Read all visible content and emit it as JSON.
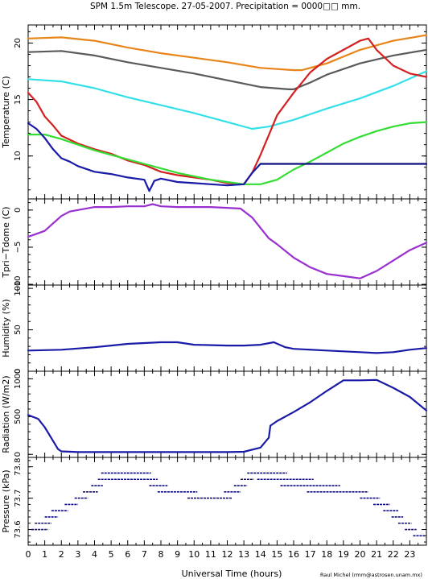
{
  "header": {
    "title": "SPM 1.5m Telescope. 27-05-2007. Precipitation = 0000□□ mm.",
    "credit": "Raul Michel (rmm@astrosen.unam.mx)"
  },
  "colors": {
    "axes": "#000000",
    "orange": "#e8851a",
    "gray": "#5a5a5a",
    "cyan": "#33e0e8",
    "red": "#d42020",
    "green": "#33dd33",
    "blue": "#1a1aa8",
    "navy": "#0d0d80",
    "purple": "#9a2fd0"
  },
  "chart_data": [
    {
      "type": "line",
      "ylabel": "Temperature (C)",
      "ylim": [
        6.2,
        21.6
      ],
      "yticks": [
        10,
        15,
        20
      ],
      "xlim": [
        0,
        24
      ],
      "series": [
        {
          "color": "orange",
          "points": [
            [
              0,
              20.4
            ],
            [
              2,
              20.5
            ],
            [
              4,
              20.2
            ],
            [
              6,
              19.6
            ],
            [
              8,
              19.1
            ],
            [
              10,
              18.7
            ],
            [
              12,
              18.3
            ],
            [
              14,
              17.8
            ],
            [
              16,
              17.6
            ],
            [
              16.5,
              17.6
            ],
            [
              18,
              18.2
            ],
            [
              20,
              19.4
            ],
            [
              22,
              20.2
            ],
            [
              24,
              20.7
            ]
          ]
        },
        {
          "color": "gray",
          "points": [
            [
              0,
              19.2
            ],
            [
              2,
              19.3
            ],
            [
              4,
              18.9
            ],
            [
              6,
              18.3
            ],
            [
              8,
              17.8
            ],
            [
              10,
              17.3
            ],
            [
              12,
              16.7
            ],
            [
              14,
              16.1
            ],
            [
              15.7,
              15.9
            ],
            [
              16,
              15.9
            ],
            [
              17,
              16.5
            ],
            [
              18,
              17.2
            ],
            [
              20,
              18.2
            ],
            [
              22,
              18.9
            ],
            [
              24,
              19.4
            ]
          ]
        },
        {
          "color": "cyan",
          "points": [
            [
              0,
              16.8
            ],
            [
              2,
              16.6
            ],
            [
              4,
              16.0
            ],
            [
              6,
              15.2
            ],
            [
              8,
              14.5
            ],
            [
              10,
              13.8
            ],
            [
              12,
              13.0
            ],
            [
              13.5,
              12.4
            ],
            [
              14.5,
              12.6
            ],
            [
              16,
              13.2
            ],
            [
              18,
              14.2
            ],
            [
              20,
              15.1
            ],
            [
              22,
              16.2
            ],
            [
              24,
              17.5
            ]
          ]
        },
        {
          "color": "red",
          "points": [
            [
              0,
              15.6
            ],
            [
              0.5,
              14.8
            ],
            [
              1,
              13.5
            ],
            [
              1.5,
              12.7
            ],
            [
              2,
              11.8
            ],
            [
              3,
              11.1
            ],
            [
              4,
              10.6
            ],
            [
              5,
              10.2
            ],
            [
              6,
              9.6
            ],
            [
              7,
              9.2
            ],
            [
              8,
              8.6
            ],
            [
              9,
              8.3
            ],
            [
              10,
              8.1
            ],
            [
              11,
              7.9
            ],
            [
              12,
              7.6
            ],
            [
              13,
              7.5
            ],
            [
              13.5,
              8.5
            ],
            [
              14,
              10.1
            ],
            [
              15,
              13.6
            ],
            [
              16,
              15.6
            ],
            [
              17,
              17.4
            ],
            [
              18,
              18.6
            ],
            [
              19,
              19.4
            ],
            [
              20,
              20.2
            ],
            [
              20.5,
              20.4
            ],
            [
              21,
              19.4
            ],
            [
              22,
              18.0
            ],
            [
              23,
              17.3
            ],
            [
              24,
              17.0
            ]
          ]
        },
        {
          "color": "green",
          "points": [
            [
              0,
              11.9
            ],
            [
              1,
              11.9
            ],
            [
              2,
              11.5
            ],
            [
              3,
              11.0
            ],
            [
              4,
              10.5
            ],
            [
              5,
              10.1
            ],
            [
              6,
              9.7
            ],
            [
              7,
              9.3
            ],
            [
              8,
              8.9
            ],
            [
              9,
              8.5
            ],
            [
              10,
              8.2
            ],
            [
              11,
              7.9
            ],
            [
              12,
              7.7
            ],
            [
              13,
              7.5
            ],
            [
              14,
              7.5
            ],
            [
              15,
              7.9
            ],
            [
              16,
              8.8
            ],
            [
              17,
              9.5
            ],
            [
              18,
              10.3
            ],
            [
              19,
              11.1
            ],
            [
              20,
              11.7
            ],
            [
              21,
              12.2
            ],
            [
              22,
              12.6
            ],
            [
              23,
              12.9
            ],
            [
              24,
              13.0
            ]
          ]
        },
        {
          "color": "blue",
          "points": [
            [
              0,
              12.9
            ],
            [
              0.5,
              12.4
            ],
            [
              1,
              11.6
            ],
            [
              1.5,
              10.6
            ],
            [
              2,
              9.8
            ],
            [
              2.5,
              9.5
            ],
            [
              3,
              9.1
            ],
            [
              4,
              8.6
            ],
            [
              5,
              8.4
            ],
            [
              6,
              8.1
            ],
            [
              7,
              7.9
            ],
            [
              7.3,
              6.9
            ],
            [
              7.6,
              7.8
            ],
            [
              8,
              8.0
            ],
            [
              9,
              7.7
            ],
            [
              10,
              7.6
            ],
            [
              11,
              7.5
            ],
            [
              12,
              7.4
            ],
            [
              13,
              7.5
            ],
            [
              13.5,
              8.5
            ],
            [
              14,
              9.3
            ]
          ]
        },
        {
          "color": "navy",
          "points": [
            [
              14,
              9.3
            ],
            [
              24,
              9.3
            ]
          ]
        }
      ]
    },
    {
      "type": "line",
      "ylabel": "Tpri−Tdome (C)",
      "ylim": [
        -10.1,
        1.5
      ],
      "yticks": [
        0,
        -5,
        -10
      ],
      "xlim": [
        0,
        24
      ],
      "series": [
        {
          "color": "purple",
          "points": [
            [
              0,
              -3.6
            ],
            [
              0.5,
              -3.2
            ],
            [
              1,
              -2.8
            ],
            [
              1.5,
              -1.8
            ],
            [
              2,
              -0.8
            ],
            [
              2.5,
              -0.2
            ],
            [
              3,
              0.0
            ],
            [
              4,
              0.4
            ],
            [
              5,
              0.4
            ],
            [
              6,
              0.5
            ],
            [
              7,
              0.5
            ],
            [
              7.5,
              0.8
            ],
            [
              8,
              0.5
            ],
            [
              9,
              0.4
            ],
            [
              10,
              0.4
            ],
            [
              11,
              0.4
            ],
            [
              12,
              0.3
            ],
            [
              12.8,
              0.2
            ],
            [
              13.5,
              -1.0
            ],
            [
              14.5,
              -3.8
            ],
            [
              15,
              -4.6
            ],
            [
              16,
              -6.4
            ],
            [
              17,
              -7.7
            ],
            [
              18,
              -8.6
            ],
            [
              19,
              -8.9
            ],
            [
              20,
              -9.2
            ],
            [
              21,
              -8.2
            ],
            [
              22,
              -6.8
            ],
            [
              23,
              -5.4
            ],
            [
              24,
              -4.4
            ]
          ]
        }
      ]
    },
    {
      "type": "line",
      "ylabel": "Humidity (%)",
      "ylim": [
        0,
        104
      ],
      "yticks": [
        0,
        50,
        100
      ],
      "xlim": [
        0,
        24
      ],
      "series": [
        {
          "color": "blue",
          "points": [
            [
              0,
              25
            ],
            [
              2,
              26
            ],
            [
              4,
              29
            ],
            [
              6,
              33
            ],
            [
              8,
              35
            ],
            [
              9,
              35
            ],
            [
              10,
              32
            ],
            [
              12,
              31
            ],
            [
              13,
              31
            ],
            [
              14,
              32
            ],
            [
              14.8,
              35
            ],
            [
              15.5,
              29
            ],
            [
              16,
              27
            ],
            [
              18,
              25
            ],
            [
              20,
              23
            ],
            [
              21,
              22
            ],
            [
              22,
              23
            ],
            [
              23,
              26
            ],
            [
              24,
              28
            ]
          ]
        }
      ]
    },
    {
      "type": "line",
      "ylabel": "Radiation (W/m2)",
      "ylim": [
        -40,
        1100
      ],
      "yticks": [
        0,
        500,
        1000
      ],
      "xlim": [
        0,
        24
      ],
      "series": [
        {
          "color": "blue",
          "points": [
            [
              0,
              520
            ],
            [
              0.6,
              470
            ],
            [
              1,
              360
            ],
            [
              1.5,
              180
            ],
            [
              1.8,
              70
            ],
            [
              2,
              40
            ],
            [
              3,
              30
            ],
            [
              6,
              30
            ],
            [
              9,
              30
            ],
            [
              12,
              30
            ],
            [
              13,
              35
            ],
            [
              14,
              90
            ],
            [
              14.5,
              220
            ],
            [
              14.6,
              380
            ],
            [
              15,
              440
            ],
            [
              16,
              560
            ],
            [
              17,
              690
            ],
            [
              18,
              840
            ],
            [
              19,
              980
            ],
            [
              20,
              980
            ],
            [
              21,
              985
            ],
            [
              22,
              880
            ],
            [
              23,
              760
            ],
            [
              24,
              580
            ]
          ]
        }
      ]
    },
    {
      "type": "scatter",
      "ylabel": "Pressure (kPa)",
      "ylim": [
        73.55,
        73.83
      ],
      "yticks": [
        73.6,
        73.7,
        73.8
      ],
      "xlim": [
        0,
        24
      ],
      "xlabel": "Universal Time (hours)",
      "xticks": [
        0,
        1,
        2,
        3,
        4,
        5,
        6,
        7,
        8,
        9,
        10,
        11,
        12,
        13,
        14,
        15,
        16,
        17,
        18,
        19,
        20,
        21,
        22,
        23
      ],
      "series": [
        {
          "color": "navy",
          "segments": [
            [
              0.2,
              1.2,
              73.6
            ],
            [
              0.4,
              1.4,
              73.62
            ],
            [
              1.0,
              1.8,
              73.64
            ],
            [
              1.4,
              2.4,
              73.66
            ],
            [
              2.2,
              3.0,
              73.68
            ],
            [
              2.8,
              3.6,
              73.7
            ],
            [
              3.3,
              4.2,
              73.72
            ],
            [
              3.8,
              4.5,
              73.74
            ],
            [
              4.2,
              4.8,
              73.76
            ],
            [
              4.4,
              7.4,
              73.78
            ],
            [
              4.8,
              7.8,
              73.76
            ],
            [
              7.3,
              8.4,
              73.74
            ],
            [
              7.8,
              10.2,
              73.72
            ],
            [
              9.6,
              12.3,
              73.7
            ],
            [
              11.8,
              12.8,
              73.72
            ],
            [
              12.4,
              13.2,
              73.74
            ],
            [
              12.8,
              13.6,
              73.76
            ],
            [
              13.2,
              15.6,
              73.78
            ],
            [
              13.8,
              17.2,
              73.76
            ],
            [
              15.2,
              18.8,
              73.74
            ],
            [
              16.8,
              20.5,
              73.72
            ],
            [
              20.0,
              21.2,
              73.7
            ],
            [
              20.8,
              21.8,
              73.68
            ],
            [
              21.4,
              22.3,
              73.66
            ],
            [
              21.9,
              22.6,
              73.64
            ],
            [
              22.3,
              23.1,
              73.62
            ],
            [
              22.7,
              23.4,
              73.6
            ],
            [
              23.2,
              23.9,
              73.58
            ]
          ]
        }
      ]
    }
  ]
}
